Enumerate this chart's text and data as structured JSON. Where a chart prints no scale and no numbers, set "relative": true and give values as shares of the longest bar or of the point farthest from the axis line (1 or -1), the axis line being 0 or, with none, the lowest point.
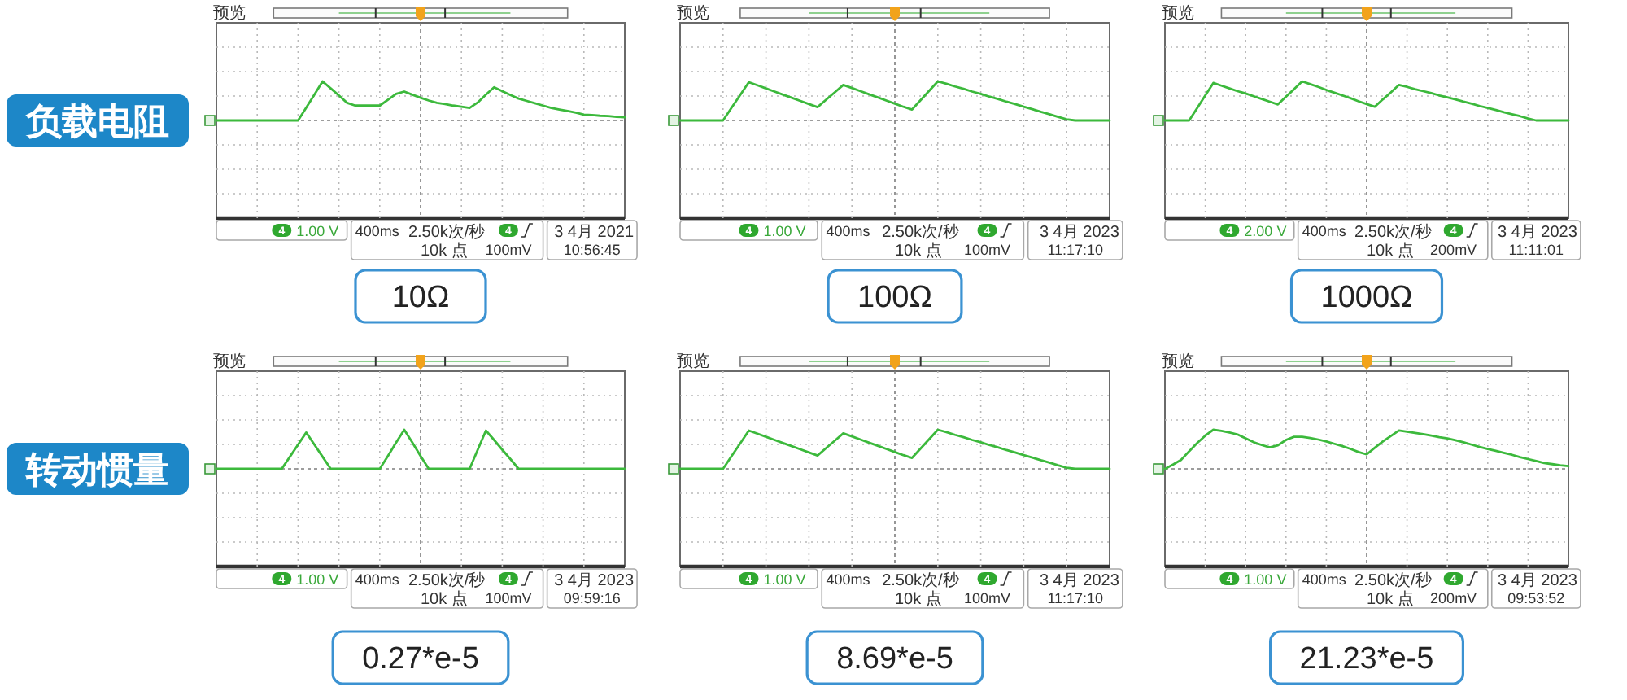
{
  "chart_data": [
    {
      "type": "line",
      "title": "10Ω",
      "ylabel": "负载电阻",
      "relative": true,
      "grid": true,
      "annotations": [
        "预览",
        "4",
        "1.00 V",
        "400ms",
        "2.50k次/秒",
        "10k 点",
        "4",
        "100mV",
        "3 4月 2021",
        "10:56:45"
      ],
      "categories": [
        null,
        null,
        null,
        null,
        null,
        null,
        null,
        null,
        null,
        null,
        null,
        null,
        null,
        null,
        null,
        null,
        null,
        null,
        null,
        null,
        null,
        null,
        null,
        null,
        null,
        null,
        null,
        null,
        null,
        null,
        null,
        null,
        null,
        null,
        null,
        null,
        null,
        null,
        null,
        null,
        null,
        null,
        null,
        null,
        null,
        null,
        null,
        null,
        null,
        null,
        null
      ],
      "series": [
        {
          "color": "#3cb93c",
          "values": [
            0,
            0,
            0,
            0,
            0,
            0,
            0,
            0,
            0,
            0,
            0,
            0.33,
            0.66,
            1,
            0.82,
            0.64,
            0.45,
            0.38,
            0.38,
            0.38,
            0.38,
            0.53,
            0.68,
            0.74,
            0.66,
            0.58,
            0.51,
            0.45,
            0.42,
            0.38,
            0.35,
            0.32,
            0.46,
            0.66,
            0.85,
            0.75,
            0.65,
            0.56,
            0.5,
            0.44,
            0.38,
            0.32,
            0.28,
            0.24,
            0.2,
            0.15,
            0.14,
            0.12,
            0.11,
            0.09,
            0.08
          ]
        }
      ]
    },
    {
      "type": "line",
      "title": "100Ω",
      "relative": true,
      "grid": true,
      "annotations": [
        "预览",
        "4",
        "1.00 V",
        "400ms",
        "2.50k次/秒",
        "10k 点",
        "4",
        "100mV",
        "3 4月 2023",
        "11:17:10"
      ],
      "categories": [
        null,
        null,
        null,
        null,
        null,
        null,
        null,
        null,
        null,
        null,
        null,
        null,
        null,
        null,
        null,
        null,
        null,
        null,
        null,
        null,
        null,
        null,
        null,
        null,
        null,
        null,
        null,
        null,
        null,
        null,
        null,
        null,
        null,
        null,
        null,
        null,
        null,
        null,
        null,
        null,
        null,
        null,
        null,
        null,
        null,
        null,
        null,
        null,
        null,
        null,
        null
      ],
      "series": [
        {
          "color": "#3cb93c",
          "values": [
            0,
            0,
            0,
            0,
            0,
            0,
            0.33,
            0.65,
            0.98,
            0.9,
            0.82,
            0.74,
            0.66,
            0.58,
            0.5,
            0.42,
            0.34,
            0.53,
            0.72,
            0.91,
            0.83,
            0.75,
            0.67,
            0.59,
            0.51,
            0.43,
            0.35,
            0.28,
            0.52,
            0.76,
            1,
            0.94,
            0.87,
            0.81,
            0.74,
            0.68,
            0.61,
            0.55,
            0.48,
            0.42,
            0.35,
            0.29,
            0.22,
            0.16,
            0.09,
            0.03,
            0,
            0,
            0,
            0,
            0
          ]
        }
      ]
    },
    {
      "type": "line",
      "title": "1000Ω",
      "relative": true,
      "grid": true,
      "annotations": [
        "预览",
        "4",
        "2.00 V",
        "400ms",
        "2.50k次/秒",
        "10k 点",
        "4",
        "200mV",
        "3 4月 2023",
        "11:11:01"
      ],
      "categories": [
        null,
        null,
        null,
        null,
        null,
        null,
        null,
        null,
        null,
        null,
        null,
        null,
        null,
        null,
        null,
        null,
        null,
        null,
        null,
        null,
        null,
        null,
        null,
        null,
        null,
        null,
        null,
        null,
        null,
        null,
        null,
        null,
        null,
        null,
        null,
        null,
        null,
        null,
        null,
        null,
        null,
        null,
        null,
        null,
        null,
        null,
        null,
        null,
        null,
        null,
        null
      ],
      "series": [
        {
          "color": "#3cb93c",
          "values": [
            0,
            0,
            0,
            0,
            0.32,
            0.64,
            0.96,
            0.89,
            0.82,
            0.75,
            0.69,
            0.62,
            0.55,
            0.48,
            0.41,
            0.61,
            0.8,
            1,
            0.93,
            0.86,
            0.78,
            0.71,
            0.64,
            0.57,
            0.49,
            0.42,
            0.35,
            0.54,
            0.72,
            0.91,
            0.86,
            0.8,
            0.75,
            0.7,
            0.64,
            0.59,
            0.54,
            0.48,
            0.43,
            0.37,
            0.32,
            0.27,
            0.21,
            0.16,
            0.11,
            0.05,
            0,
            0,
            0,
            0,
            0
          ]
        }
      ]
    },
    {
      "type": "line",
      "title": "0.27*e-5",
      "ylabel": "转动惯量",
      "relative": true,
      "grid": true,
      "annotations": [
        "预览",
        "4",
        "1.00 V",
        "400ms",
        "2.50k次/秒",
        "10k 点",
        "4",
        "100mV",
        "3 4月 2023",
        "09:59:16"
      ],
      "categories": [
        null,
        null,
        null,
        null,
        null,
        null,
        null,
        null,
        null,
        null,
        null,
        null,
        null,
        null,
        null,
        null,
        null,
        null,
        null,
        null,
        null,
        null,
        null,
        null,
        null,
        null,
        null,
        null,
        null,
        null,
        null,
        null,
        null,
        null,
        null,
        null,
        null,
        null,
        null,
        null,
        null,
        null,
        null,
        null,
        null,
        null,
        null,
        null,
        null,
        null,
        null
      ],
      "series": [
        {
          "color": "#3cb93c",
          "values": [
            0,
            0,
            0,
            0,
            0,
            0,
            0,
            0,
            0,
            0.31,
            0.62,
            0.93,
            0.62,
            0.31,
            0,
            0,
            0,
            0,
            0,
            0,
            0,
            0.33,
            0.67,
            1,
            0.67,
            0.33,
            0,
            0,
            0,
            0,
            0,
            0,
            0.49,
            0.98,
            0.74,
            0.49,
            0.25,
            0,
            0,
            0,
            0,
            0,
            0,
            0,
            0,
            0,
            0,
            0,
            0,
            0,
            0
          ]
        }
      ]
    },
    {
      "type": "line",
      "title": "8.69*e-5",
      "relative": true,
      "grid": true,
      "annotations": [
        "预览",
        "4",
        "1.00 V",
        "400ms",
        "2.50k次/秒",
        "10k 点",
        "4",
        "100mV",
        "3 4月 2023",
        "11:17:10"
      ],
      "categories": [
        null,
        null,
        null,
        null,
        null,
        null,
        null,
        null,
        null,
        null,
        null,
        null,
        null,
        null,
        null,
        null,
        null,
        null,
        null,
        null,
        null,
        null,
        null,
        null,
        null,
        null,
        null,
        null,
        null,
        null,
        null,
        null,
        null,
        null,
        null,
        null,
        null,
        null,
        null,
        null,
        null,
        null,
        null,
        null,
        null,
        null,
        null,
        null,
        null,
        null,
        null
      ],
      "series": [
        {
          "color": "#3cb93c",
          "values": [
            0,
            0,
            0,
            0,
            0,
            0,
            0.33,
            0.65,
            0.98,
            0.9,
            0.82,
            0.74,
            0.66,
            0.58,
            0.5,
            0.42,
            0.34,
            0.53,
            0.72,
            0.91,
            0.83,
            0.75,
            0.67,
            0.59,
            0.51,
            0.43,
            0.35,
            0.28,
            0.52,
            0.76,
            1,
            0.94,
            0.87,
            0.81,
            0.74,
            0.68,
            0.61,
            0.55,
            0.48,
            0.42,
            0.35,
            0.29,
            0.22,
            0.16,
            0.09,
            0.03,
            0,
            0,
            0,
            0,
            0
          ]
        }
      ]
    },
    {
      "type": "line",
      "title": "21.23*e-5",
      "relative": true,
      "grid": true,
      "annotations": [
        "预览",
        "4",
        "1.00 V",
        "400ms",
        "2.50k次/秒",
        "10k 点",
        "4",
        "200mV",
        "3 4月 2023",
        "09:53:52"
      ],
      "categories": [
        null,
        null,
        null,
        null,
        null,
        null,
        null,
        null,
        null,
        null,
        null,
        null,
        null,
        null,
        null,
        null,
        null,
        null,
        null,
        null,
        null,
        null,
        null,
        null,
        null,
        null,
        null,
        null,
        null,
        null,
        null,
        null,
        null,
        null,
        null,
        null,
        null,
        null,
        null,
        null,
        null,
        null,
        null,
        null,
        null,
        null,
        null,
        null,
        null,
        null,
        null
      ],
      "series": [
        {
          "color": "#3cb93c",
          "values": [
            0,
            0.11,
            0.23,
            0.45,
            0.66,
            0.85,
            1,
            0.97,
            0.93,
            0.88,
            0.78,
            0.68,
            0.61,
            0.55,
            0.6,
            0.74,
            0.82,
            0.82,
            0.79,
            0.75,
            0.7,
            0.64,
            0.58,
            0.51,
            0.43,
            0.37,
            0.54,
            0.7,
            0.84,
            0.98,
            0.95,
            0.92,
            0.89,
            0.85,
            0.81,
            0.78,
            0.73,
            0.68,
            0.62,
            0.56,
            0.51,
            0.46,
            0.41,
            0.36,
            0.3,
            0.25,
            0.2,
            0.15,
            0.12,
            0.09,
            0.07
          ]
        }
      ]
    }
  ]
}
